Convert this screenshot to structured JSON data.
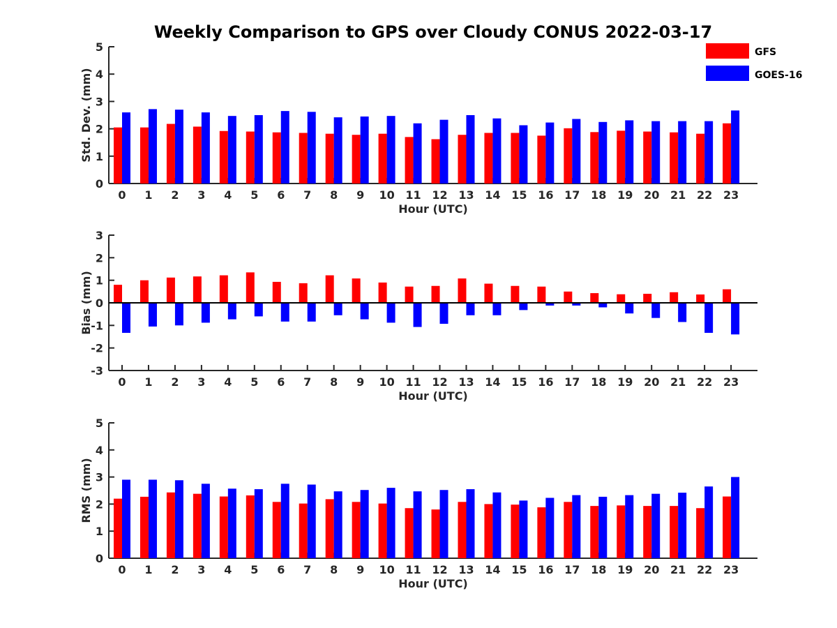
{
  "chart_data": {
    "type": "bar",
    "title": "Weekly Comparison to GPS over Cloudy CONUS 2022-03-17",
    "legend": {
      "placement": "top-right",
      "entries": [
        "GFS",
        "GOES-16"
      ]
    },
    "colors": {
      "GFS": "#ff0000",
      "GOES-16": "#0000ff"
    },
    "categories": [
      "0",
      "1",
      "2",
      "3",
      "4",
      "5",
      "6",
      "7",
      "8",
      "9",
      "10",
      "11",
      "12",
      "13",
      "14",
      "15",
      "16",
      "17",
      "18",
      "19",
      "20",
      "21",
      "22",
      "23"
    ],
    "panels": [
      {
        "ylabel": "Std. Dev. (mm)",
        "xlabel": "Hour (UTC)",
        "ylim": [
          0,
          5
        ],
        "yticks": [
          "0",
          "1",
          "2",
          "3",
          "4",
          "5"
        ],
        "series": [
          {
            "name": "GFS",
            "values": [
              2.05,
              2.05,
              2.18,
              2.08,
              1.92,
              1.9,
              1.87,
              1.85,
              1.82,
              1.78,
              1.82,
              1.7,
              1.62,
              1.78,
              1.85,
              1.85,
              1.75,
              2.02,
              1.88,
              1.93,
              1.9,
              1.87,
              1.82,
              2.2
            ]
          },
          {
            "name": "GOES-16",
            "values": [
              2.6,
              2.72,
              2.7,
              2.6,
              2.47,
              2.5,
              2.65,
              2.62,
              2.42,
              2.45,
              2.47,
              2.2,
              2.33,
              2.5,
              2.38,
              2.13,
              2.23,
              2.36,
              2.25,
              2.31,
              2.28,
              2.28,
              2.28,
              2.67
            ]
          }
        ]
      },
      {
        "ylabel": "Bias (mm)",
        "xlabel": "Hour (UTC)",
        "ylim": [
          -3,
          3
        ],
        "yticks": [
          "-3",
          "-2",
          "-1",
          "0",
          "1",
          "2",
          "3"
        ],
        "series": [
          {
            "name": "GFS",
            "values": [
              0.8,
              1.0,
              1.12,
              1.17,
              1.22,
              1.35,
              0.93,
              0.87,
              1.22,
              1.08,
              0.9,
              0.72,
              0.75,
              1.08,
              0.85,
              0.75,
              0.72,
              0.5,
              0.43,
              0.38,
              0.4,
              0.47,
              0.37,
              0.6
            ]
          },
          {
            "name": "GOES-16",
            "values": [
              -1.33,
              -1.05,
              -1.0,
              -0.88,
              -0.73,
              -0.6,
              -0.83,
              -0.83,
              -0.55,
              -0.73,
              -0.88,
              -1.07,
              -0.93,
              -0.55,
              -0.55,
              -0.32,
              -0.12,
              -0.12,
              -0.2,
              -0.47,
              -0.67,
              -0.85,
              -1.33,
              -1.4
            ]
          }
        ]
      },
      {
        "ylabel": "RMS (mm)",
        "xlabel": "Hour (UTC)",
        "ylim": [
          0,
          5
        ],
        "yticks": [
          "0",
          "1",
          "2",
          "3",
          "4",
          "5"
        ],
        "series": [
          {
            "name": "GFS",
            "values": [
              2.2,
              2.27,
              2.43,
              2.38,
              2.28,
              2.32,
              2.08,
              2.02,
              2.18,
              2.08,
              2.02,
              1.85,
              1.8,
              2.08,
              2.0,
              1.98,
              1.88,
              2.08,
              1.93,
              1.95,
              1.93,
              1.93,
              1.85,
              2.28
            ]
          },
          {
            "name": "GOES-16",
            "values": [
              2.9,
              2.9,
              2.88,
              2.75,
              2.57,
              2.55,
              2.75,
              2.72,
              2.47,
              2.52,
              2.6,
              2.47,
              2.52,
              2.55,
              2.43,
              2.13,
              2.23,
              2.33,
              2.27,
              2.33,
              2.38,
              2.42,
              2.65,
              3.0
            ]
          }
        ]
      }
    ]
  }
}
